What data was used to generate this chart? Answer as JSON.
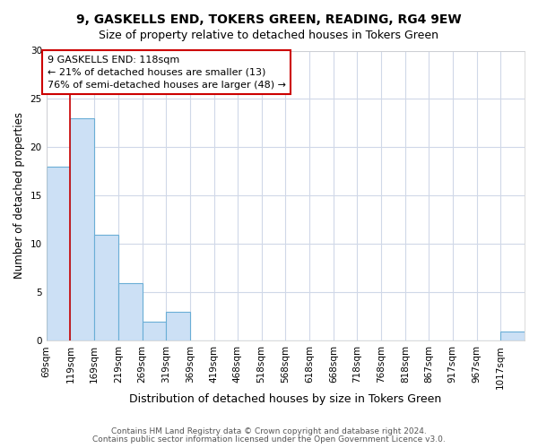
{
  "title": "9, GASKELLS END, TOKERS GREEN, READING, RG4 9EW",
  "subtitle": "Size of property relative to detached houses in Tokers Green",
  "xlabel": "Distribution of detached houses by size in Tokers Green",
  "ylabel": "Number of detached properties",
  "footnote1": "Contains HM Land Registry data © Crown copyright and database right 2024.",
  "footnote2": "Contains public sector information licensed under the Open Government Licence v3.0.",
  "annotation_line1": "9 GASKELLS END: 118sqm",
  "annotation_line2": "← 21% of detached houses are smaller (13)",
  "annotation_line3": "76% of semi-detached houses are larger (48) →",
  "bar_edges": [
    69,
    119,
    169,
    219,
    269,
    319,
    369,
    419,
    468,
    518,
    568,
    618,
    668,
    718,
    768,
    818,
    867,
    917,
    967,
    1017,
    1067
  ],
  "bar_heights": [
    18,
    23,
    11,
    6,
    2,
    3,
    0,
    0,
    0,
    0,
    0,
    0,
    0,
    0,
    0,
    0,
    0,
    0,
    0,
    1,
    0
  ],
  "bar_color": "#cce0f5",
  "bar_edge_color": "#6aaed6",
  "bar_linewidth": 0.8,
  "vline_x": 119,
  "vline_color": "#cc0000",
  "vline_linewidth": 1.2,
  "annotation_box_color": "#cc0000",
  "annotation_text_color": "#000000",
  "ylim": [
    0,
    30
  ],
  "yticks": [
    0,
    5,
    10,
    15,
    20,
    25,
    30
  ],
  "background_color": "#ffffff",
  "grid_color": "#d0d8e8",
  "title_fontsize": 10,
  "subtitle_fontsize": 9,
  "xlabel_fontsize": 9,
  "ylabel_fontsize": 8.5,
  "tick_fontsize": 7.5,
  "annotation_fontsize": 8,
  "footnote_fontsize": 6.5
}
